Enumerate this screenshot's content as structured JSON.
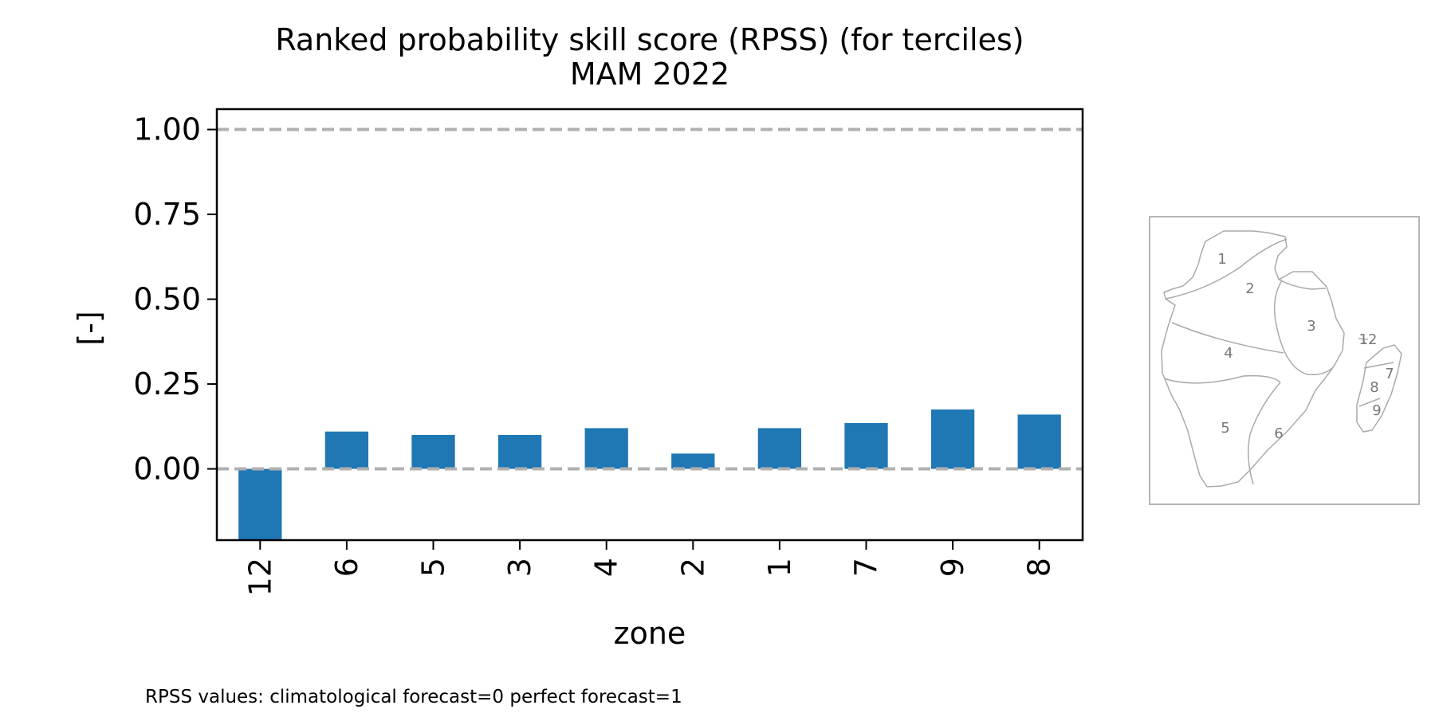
{
  "chart_data": {
    "type": "bar",
    "title": "Ranked probability skill score (RPSS) (for terciles)",
    "subtitle": "MAM 2022",
    "xlabel": "zone",
    "ylabel": "[-]",
    "categories": [
      "12",
      "6",
      "5",
      "3",
      "4",
      "2",
      "1",
      "7",
      "9",
      "8"
    ],
    "values": [
      -0.21,
      0.11,
      0.1,
      0.1,
      0.12,
      0.045,
      0.12,
      0.135,
      0.175,
      0.16
    ],
    "ylim": [
      -0.21,
      1.06
    ],
    "yticks": [
      0.0,
      0.25,
      0.5,
      0.75,
      1.0
    ],
    "ytick_labels": [
      "0.00",
      "0.25",
      "0.50",
      "0.75",
      "1.00"
    ],
    "reference_lines": [
      0.0,
      1.0
    ],
    "bar_color": "#1f77b4",
    "reference_line_color": "#b0b0b0",
    "grid": false,
    "legend": "none"
  },
  "inset_map": {
    "zones": [
      "1",
      "2",
      "3",
      "12",
      "4",
      "7",
      "8",
      "9",
      "5",
      "6"
    ],
    "outline_color": "#aaaaaa",
    "label_color": "#777777"
  },
  "footnote": "RPSS values: climatological forecast=0 perfect forecast=1"
}
